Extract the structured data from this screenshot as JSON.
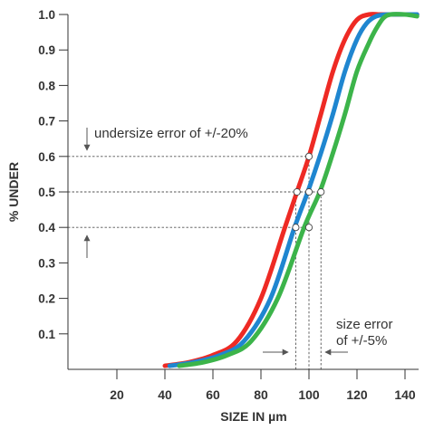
{
  "chart_data": {
    "type": "line",
    "title": "",
    "xlabel": "SIZE IN µm",
    "ylabel": "% UNDER",
    "xlim": [
      0,
      145
    ],
    "ylim": [
      0,
      1.0
    ],
    "x_ticks": [
      20,
      40,
      60,
      80,
      100,
      120,
      140
    ],
    "y_ticks": [
      0.1,
      0.2,
      0.3,
      0.4,
      0.5,
      0.6,
      0.7,
      0.8,
      0.9,
      1.0
    ],
    "x_tick_labels": [
      "20",
      "40",
      "60",
      "80",
      "100",
      "120",
      "140"
    ],
    "y_tick_labels": [
      "0.1",
      "0.2",
      "0.3",
      "0.4",
      "0.5",
      "0.6",
      "0.7",
      "0.8",
      "0.9",
      "1.0"
    ],
    "grid": false,
    "series": [
      {
        "color": "#ee2a24",
        "x": [
          40,
          50,
          60,
          70,
          80,
          90,
          95,
          100,
          105,
          110,
          115,
          120,
          125,
          130,
          140,
          145
        ],
        "y": [
          0.01,
          0.02,
          0.04,
          0.08,
          0.2,
          0.4,
          0.5,
          0.6,
          0.72,
          0.84,
          0.93,
          0.985,
          1.0,
          1.0,
          1.0,
          1.0
        ]
      },
      {
        "color": "#1f86d0",
        "x": [
          42,
          52,
          63,
          73,
          84,
          94,
          99.5,
          105,
          110,
          115,
          120,
          124,
          128,
          133,
          140,
          145
        ],
        "y": [
          0.01,
          0.02,
          0.04,
          0.08,
          0.2,
          0.4,
          0.5,
          0.61,
          0.72,
          0.84,
          0.93,
          0.975,
          0.995,
          1.0,
          1.0,
          1.0
        ]
      },
      {
        "color": "#3cb44a",
        "x": [
          46,
          56,
          66,
          76,
          87,
          98,
          104.5,
          110,
          115,
          120,
          125,
          128,
          131,
          134,
          140,
          145
        ],
        "y": [
          0.01,
          0.02,
          0.04,
          0.08,
          0.2,
          0.4,
          0.5,
          0.61,
          0.72,
          0.84,
          0.92,
          0.96,
          0.99,
          1.0,
          1.0,
          0.995
        ]
      }
    ],
    "reference_lines": {
      "horizontal": [
        0.4,
        0.5,
        0.6
      ],
      "vertical": [
        94.5,
        100,
        105
      ]
    },
    "markers": [
      {
        "x": 95,
        "y": 0.5
      },
      {
        "x": 100,
        "y": 0.5
      },
      {
        "x": 105,
        "y": 0.5
      },
      {
        "x": 100,
        "y": 0.6
      },
      {
        "x": 94.5,
        "y": 0.4
      },
      {
        "x": 100,
        "y": 0.4
      }
    ],
    "annotations": {
      "undersize_error": "undersize error of +/-20%",
      "size_error_line1": "size error",
      "size_error_line2": "of +/-5%"
    },
    "colors": {
      "axis": "#333333",
      "reference_line": "#555555",
      "text": "#333333"
    }
  }
}
